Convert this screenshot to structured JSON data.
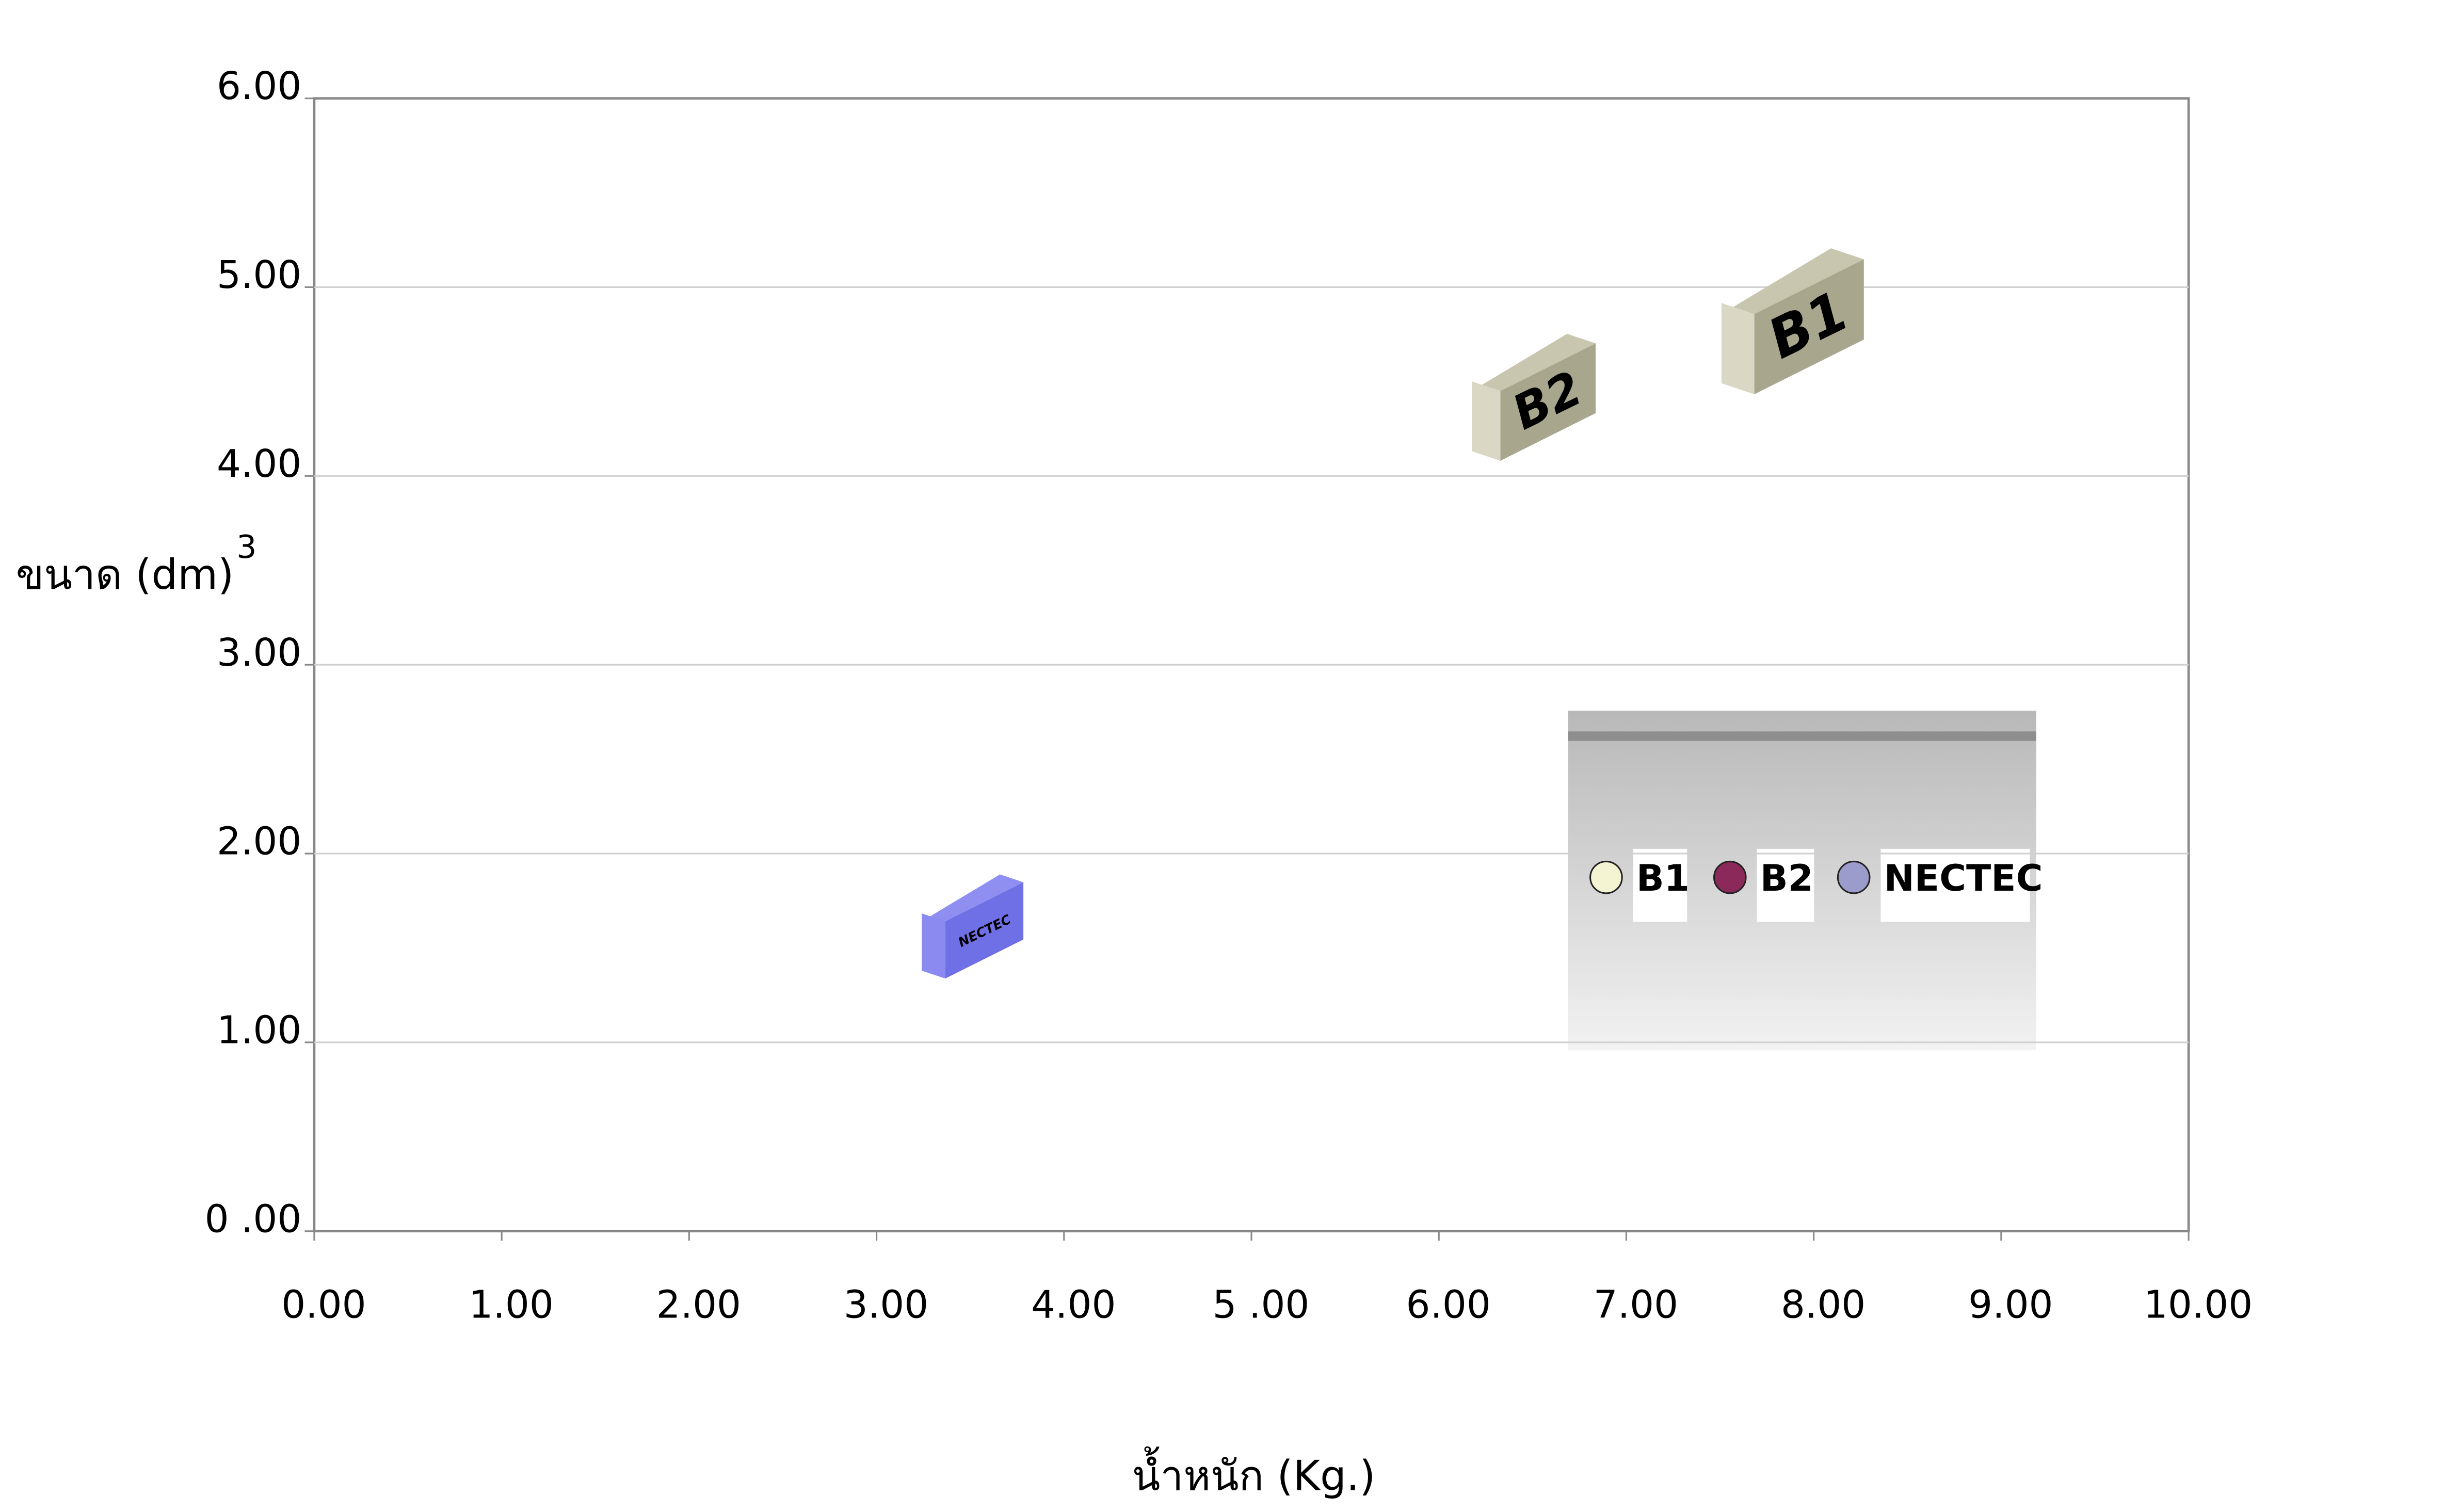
{
  "chart_data": {
    "type": "scatter",
    "xlabel": "น้ำหนัก (Kg.)",
    "ylabel": "ขนาด (dm)",
    "ylabel_superscript": "3",
    "xlim": [
      0,
      10
    ],
    "ylim": [
      0,
      6
    ],
    "xticks": [
      {
        "value": 0,
        "label": "0.00"
      },
      {
        "value": 1,
        "label": "1.00"
      },
      {
        "value": 2,
        "label": "2.00"
      },
      {
        "value": 3,
        "label": "3.00"
      },
      {
        "value": 4,
        "label": "4.00"
      },
      {
        "value": 5,
        "label": "5 .00"
      },
      {
        "value": 6,
        "label": "6.00"
      },
      {
        "value": 7,
        "label": "7.00"
      },
      {
        "value": 8,
        "label": "8.00"
      },
      {
        "value": 9,
        "label": "9.00"
      },
      {
        "value": 10,
        "label": "10.00"
      }
    ],
    "yticks": [
      {
        "value": 0,
        "label": "0 .00"
      },
      {
        "value": 1,
        "label": "1.00"
      },
      {
        "value": 2,
        "label": "2.00"
      },
      {
        "value": 3,
        "label": "3.00"
      },
      {
        "value": 4,
        "label": "4.00"
      },
      {
        "value": 5,
        "label": "5.00"
      },
      {
        "value": 6,
        "label": "6.00"
      }
    ],
    "grid": true,
    "series": [
      {
        "name": "B1",
        "color": "#f4f4d2",
        "x": [
          7.8
        ],
        "values": [
          4.8
        ]
      },
      {
        "name": "B2",
        "color": "#8b2a5a",
        "x": [
          6.43
        ],
        "values": [
          4.4
        ]
      },
      {
        "name": "NECTEC",
        "color": "#9c9ccc",
        "x": [
          3.45
        ],
        "values": [
          1.6
        ]
      }
    ]
  }
}
